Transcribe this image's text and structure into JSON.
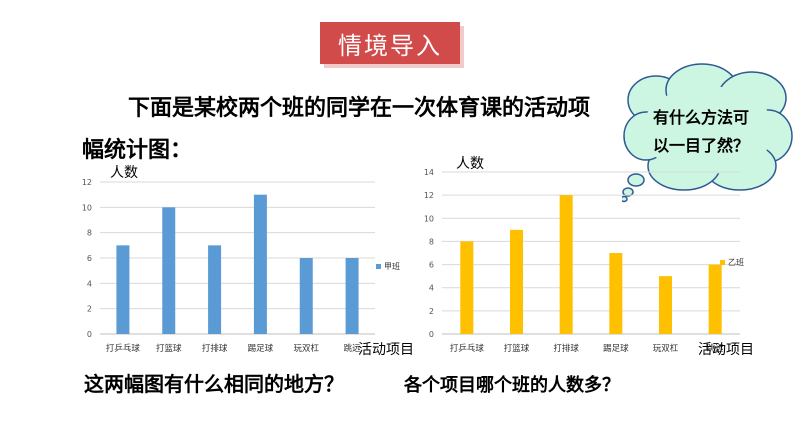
{
  "header": {
    "badge": "情境导入"
  },
  "intro": {
    "line1": "下面是某校两个班的同学在一次体育课的活动项",
    "line2": "幅统计图："
  },
  "bubble": {
    "line1": "有什么方法可",
    "line2": "以一目了然？"
  },
  "questions": {
    "q1": "这两幅图有什么相同的地方？",
    "q2": "各个项目哪个班的人数多？"
  },
  "colors": {
    "badge": "#d24b4b",
    "series_a": "#5b9bd5",
    "series_b": "#ffc000",
    "cloud_fill": "#ccf5e2",
    "cloud_stroke": "#2e5a94"
  },
  "chart_data": [
    {
      "type": "bar",
      "ylabel": "人数",
      "xlabel": "活动项目",
      "categories": [
        "打乒乓球",
        "打篮球",
        "打排球",
        "踢足球",
        "玩双杠",
        "跳远"
      ],
      "series": [
        {
          "name": "甲班",
          "values": [
            7,
            10,
            7,
            11,
            6,
            6
          ]
        }
      ],
      "yticks": [
        "0",
        "2",
        "4",
        "6",
        "8",
        "10",
        "12"
      ],
      "ylim": [
        0,
        12
      ],
      "grid": true,
      "legend": "right"
    },
    {
      "type": "bar",
      "ylabel": "人数",
      "xlabel": "活动项目",
      "categories": [
        "打乒乓球",
        "打篮球",
        "打排球",
        "踢足球",
        "玩双杠",
        "跳远"
      ],
      "series": [
        {
          "name": "乙班",
          "values": [
            8,
            9,
            12,
            7,
            5,
            6
          ]
        }
      ],
      "yticks": [
        "0",
        "2",
        "4",
        "6",
        "8",
        "10",
        "12",
        "14"
      ],
      "ylim": [
        0,
        14
      ],
      "grid": true,
      "legend": "right"
    }
  ]
}
